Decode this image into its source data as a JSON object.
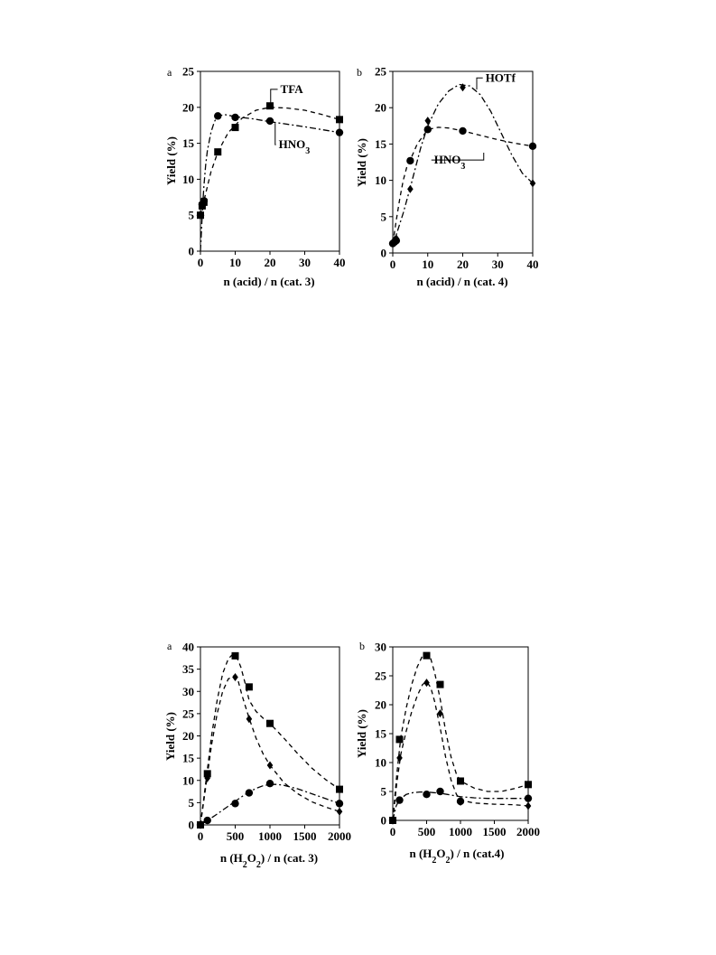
{
  "chart_data": [
    {
      "type": "scatter",
      "panel_label": "a",
      "xlabel": "n (acid) / n (cat. 3)",
      "ylabel": "Yield (%)",
      "xlim": [
        0,
        40
      ],
      "ylim": [
        0,
        25
      ],
      "xticks": [
        0,
        10,
        20,
        30,
        40
      ],
      "yticks": [
        0,
        5,
        10,
        15,
        20,
        25
      ],
      "grid": false,
      "series": [
        {
          "marker": "square",
          "curve": "dash",
          "x": [
            0,
            0.5,
            1,
            5,
            10,
            20,
            40
          ],
          "y": [
            5,
            6.3,
            6.8,
            13.8,
            17.2,
            20.2,
            18.3
          ],
          "fit_x": [
            0,
            0.5,
            1,
            2,
            3,
            5,
            8,
            12,
            16,
            20,
            25,
            30,
            35,
            40
          ],
          "fit_y": [
            5,
            6.1,
            7.0,
            9.0,
            11.0,
            13.8,
            16.5,
            18.5,
            19.6,
            20.0,
            19.9,
            19.6,
            19.0,
            18.3
          ]
        },
        {
          "marker": "circle",
          "curve": "dashdot",
          "x": [
            0,
            0.5,
            1,
            5,
            10,
            20,
            40
          ],
          "y": [
            5,
            6.5,
            7.0,
            18.8,
            18.6,
            18.1,
            16.5
          ],
          "fit_x": [
            0,
            0.3,
            0.6,
            1,
            1.5,
            2,
            3,
            4,
            5,
            7,
            10,
            15,
            20,
            30,
            40
          ],
          "fit_y": [
            0,
            3,
            6,
            9,
            12,
            14,
            16.5,
            18,
            18.8,
            19,
            18.7,
            18.4,
            18.0,
            17.3,
            16.5
          ]
        }
      ],
      "annotations": [
        {
          "text": "TFA",
          "x": 23,
          "y": 22,
          "pointer_x": 20.2,
          "pointer_y": 20.2
        },
        {
          "text": "HNO",
          "sub": "3",
          "x": 22.5,
          "y": 14.3,
          "pointer_x": 21.5,
          "pointer_y": 17.8
        }
      ]
    },
    {
      "type": "scatter",
      "panel_label": "b",
      "xlabel": "n (acid) / n (cat. 4)",
      "ylabel": "Yield (%)",
      "xlim": [
        0,
        40
      ],
      "ylim": [
        0,
        25
      ],
      "xticks": [
        0,
        10,
        20,
        30,
        40
      ],
      "yticks": [
        0,
        5,
        10,
        15,
        20,
        25
      ],
      "grid": false,
      "series": [
        {
          "marker": "diamond",
          "curve": "dashdot",
          "x": [
            0,
            0.5,
            1,
            5,
            10,
            20,
            40
          ],
          "y": [
            1.3,
            1.8,
            2.0,
            8.8,
            18.2,
            22.8,
            9.6
          ],
          "fit_x": [
            0,
            1,
            3,
            5,
            8,
            10,
            13,
            16,
            19,
            22,
            25,
            28,
            31,
            34,
            37,
            40
          ],
          "fit_y": [
            1.3,
            2.5,
            5.5,
            9.0,
            14.5,
            17.5,
            20.5,
            22.3,
            23.2,
            23.0,
            21.8,
            19.5,
            16.5,
            13.5,
            11.0,
            9.6
          ]
        },
        {
          "marker": "circle",
          "curve": "dash",
          "x": [
            0,
            0.5,
            1,
            5,
            10,
            20,
            40
          ],
          "y": [
            1.3,
            1.5,
            1.7,
            12.7,
            17.0,
            16.8,
            14.7
          ],
          "fit_x": [
            0,
            1,
            2,
            3,
            4,
            5,
            7,
            10,
            13,
            16,
            20,
            25,
            30,
            35,
            40
          ],
          "fit_y": [
            1.3,
            4.5,
            7.5,
            10.0,
            11.8,
            12.8,
            15.0,
            17.0,
            17.3,
            17.2,
            16.8,
            16.2,
            15.6,
            15.1,
            14.7
          ]
        }
      ],
      "annotations": [
        {
          "text": "HOTf",
          "x": 26.5,
          "y": 23.6,
          "pointer_x": 24,
          "pointer_y": 22.5
        },
        {
          "text": "HNO",
          "sub": "3",
          "x": 11.8,
          "y": 12.3,
          "pointer_x": 26,
          "pointer_y": 13.8
        }
      ]
    },
    {
      "type": "scatter",
      "panel_label": "a",
      "xlabel": "n (H2O2) / n (cat. 3)",
      "xlabel_parts": [
        "n (H",
        "2",
        "O",
        "2",
        ") / n (cat. 3)"
      ],
      "ylabel": "Yield (%)",
      "xlim": [
        0,
        2000
      ],
      "ylim": [
        0,
        40
      ],
      "xticks": [
        0,
        500,
        1000,
        1500,
        2000
      ],
      "yticks": [
        0,
        5,
        10,
        15,
        20,
        25,
        30,
        35,
        40
      ],
      "grid": false,
      "series": [
        {
          "marker": "square",
          "curve": "dash",
          "x": [
            0,
            100,
            500,
            700,
            1000,
            2000
          ],
          "y": [
            0,
            11.5,
            38,
            31,
            22.8,
            8
          ],
          "fit_x": [
            0,
            80,
            160,
            240,
            320,
            400,
            460,
            520,
            580,
            640,
            700,
            800,
            900,
            1000,
            1200,
            1400,
            1600,
            1800,
            2000
          ],
          "fit_y": [
            0,
            10,
            20,
            28,
            34,
            37.3,
            38.3,
            37.8,
            35.5,
            32,
            28,
            25.5,
            24,
            22.8,
            19.5,
            16,
            12.8,
            10.2,
            8
          ]
        },
        {
          "marker": "diamond",
          "curve": "dash",
          "x": [
            0,
            100,
            500,
            700,
            1000,
            2000
          ],
          "y": [
            0,
            10.5,
            33.2,
            23.8,
            13.4,
            3
          ],
          "fit_x": [
            0,
            80,
            160,
            240,
            320,
            400,
            480,
            540,
            600,
            700,
            800,
            900,
            1000,
            1200,
            1400,
            1600,
            1800,
            2000
          ],
          "fit_y": [
            0,
            9,
            18,
            25,
            30,
            32.8,
            33.5,
            32.5,
            29,
            24,
            19.5,
            16,
            13.4,
            9.5,
            7,
            5.2,
            4,
            3
          ]
        },
        {
          "marker": "circle",
          "curve": "dashdot",
          "x": [
            0,
            100,
            500,
            700,
            1000,
            2000
          ],
          "y": [
            0,
            1,
            4.8,
            7.2,
            9.3,
            4.8
          ],
          "fit_x": [
            0,
            100,
            200,
            300,
            400,
            500,
            600,
            700,
            800,
            900,
            1000,
            1100,
            1200,
            1400,
            1600,
            1800,
            2000
          ],
          "fit_y": [
            0,
            1,
            2,
            3.1,
            4.2,
            5.3,
            6.4,
            7.4,
            8.2,
            8.8,
            9.1,
            9.1,
            8.9,
            8.1,
            7,
            5.9,
            4.8
          ]
        }
      ]
    },
    {
      "type": "scatter",
      "panel_label": "b",
      "xlabel": "n (H2O2) / n (cat.4)",
      "xlabel_parts": [
        "n (H",
        "2",
        "O",
        "2",
        ") / n (cat.4)"
      ],
      "ylabel": "Yield (%)",
      "xlim": [
        0,
        2000
      ],
      "ylim": [
        0,
        30
      ],
      "xticks": [
        0,
        500,
        1000,
        1500,
        2000
      ],
      "yticks": [
        0,
        5,
        10,
        15,
        20,
        25,
        30
      ],
      "grid": false,
      "series": [
        {
          "marker": "square",
          "curve": "dash",
          "x": [
            0,
            100,
            500,
            700,
            1000,
            2000
          ],
          "y": [
            0,
            14,
            28.5,
            23.5,
            6.8,
            6.2
          ],
          "fit_x": [
            0,
            60,
            120,
            200,
            280,
            360,
            440,
            500,
            560,
            620,
            700,
            780,
            860,
            940,
            1000,
            1200,
            1400,
            1600,
            1800,
            2000
          ],
          "fit_y": [
            0,
            8,
            14.5,
            19.5,
            23.5,
            26.5,
            28.5,
            28.8,
            28,
            25.5,
            21,
            15.5,
            11,
            8,
            6.8,
            5.6,
            5,
            5,
            5.5,
            6.2
          ]
        },
        {
          "marker": "diamond",
          "curve": "dash",
          "x": [
            0,
            100,
            500,
            700,
            1000,
            2000
          ],
          "y": [
            0,
            10.8,
            23.8,
            18.5,
            3.2,
            2.5
          ],
          "fit_x": [
            0,
            60,
            120,
            200,
            280,
            360,
            440,
            500,
            560,
            620,
            700,
            780,
            860,
            940,
            1000,
            1200,
            1500,
            1800,
            2000
          ],
          "fit_y": [
            0,
            6.5,
            11.5,
            15.5,
            18.8,
            21.5,
            23.5,
            24,
            23,
            20.5,
            16,
            11,
            7,
            4.5,
            3.5,
            3,
            2.8,
            2.7,
            2.5
          ]
        },
        {
          "marker": "circle",
          "curve": "dashdot",
          "x": [
            0,
            100,
            500,
            700,
            1000,
            2000
          ],
          "y": [
            0,
            3.5,
            4.5,
            5,
            3.3,
            3.8
          ],
          "fit_x": [
            0,
            50,
            100,
            200,
            300,
            400,
            500,
            600,
            700,
            800,
            900,
            1000,
            1200,
            1400,
            1600,
            1800,
            2000
          ],
          "fit_y": [
            0,
            2.5,
            3.6,
            4.5,
            4.8,
            4.9,
            4.9,
            4.8,
            4.7,
            4.5,
            4.3,
            4.1,
            3.9,
            3.8,
            3.8,
            3.8,
            3.8
          ]
        }
      ]
    }
  ]
}
